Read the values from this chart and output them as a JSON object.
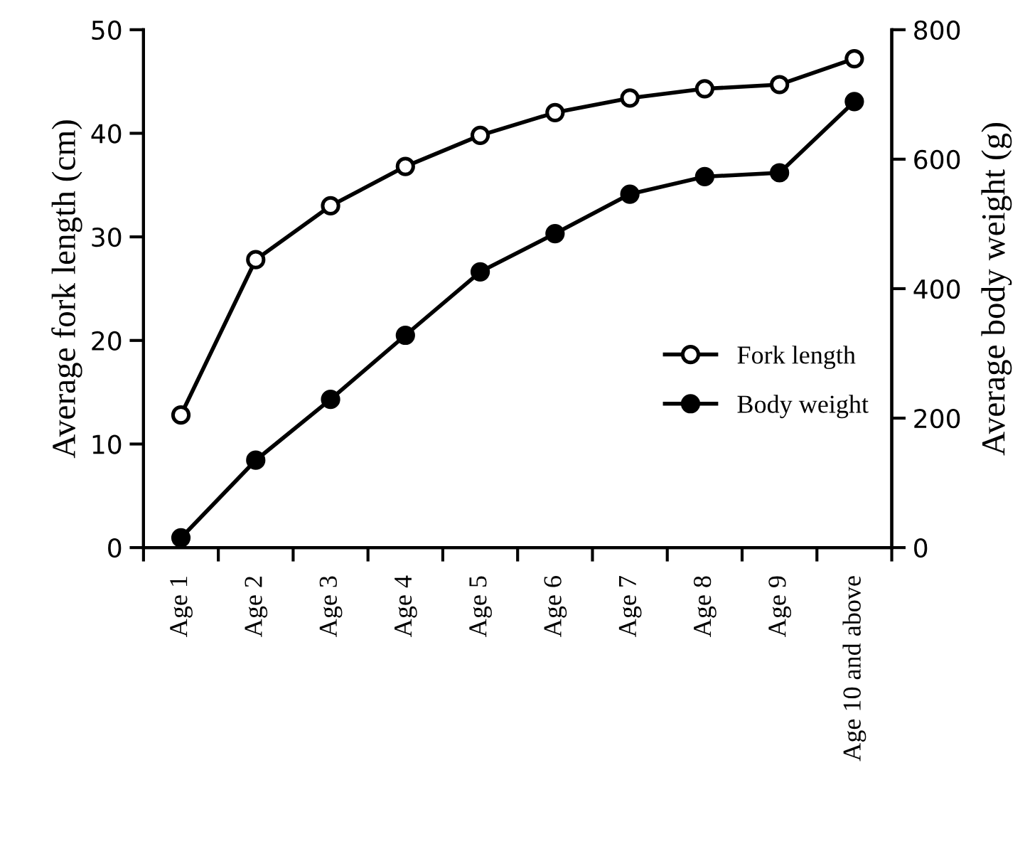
{
  "chart_data": {
    "type": "line",
    "xlabel": null,
    "ylabel": "Average fork length (cm)",
    "y2label": "Average body weight (g)",
    "categories": [
      "Age 1",
      "Age 2",
      "Age 3",
      "Age 4",
      "Age 5",
      "Age 6",
      "Age 7",
      "Age 8",
      "Age 9",
      "Age 10 and above"
    ],
    "series": [
      {
        "name": "Fork length",
        "color": "#000000",
        "marker": "circle",
        "values": [
          12.8,
          27.8,
          33.0,
          36.8,
          39.8,
          42.0,
          43.4,
          44.3,
          44.7,
          47.2
        ]
      },
      {
        "name": "Body weight",
        "color": "#000000",
        "marker": "circle",
        "axis": "y2",
        "values": [
          15,
          135,
          229,
          328,
          426,
          485,
          546,
          573,
          579,
          689
        ]
      }
    ],
    "ylim": [
      0,
      50
    ],
    "yticks": [
      0,
      10,
      20,
      30,
      40,
      50
    ],
    "y2lim": [
      0,
      800
    ],
    "y2ticks": [
      0,
      200,
      400,
      600,
      800
    ],
    "grid": false,
    "legend": "right",
    "line_style": "solid"
  }
}
